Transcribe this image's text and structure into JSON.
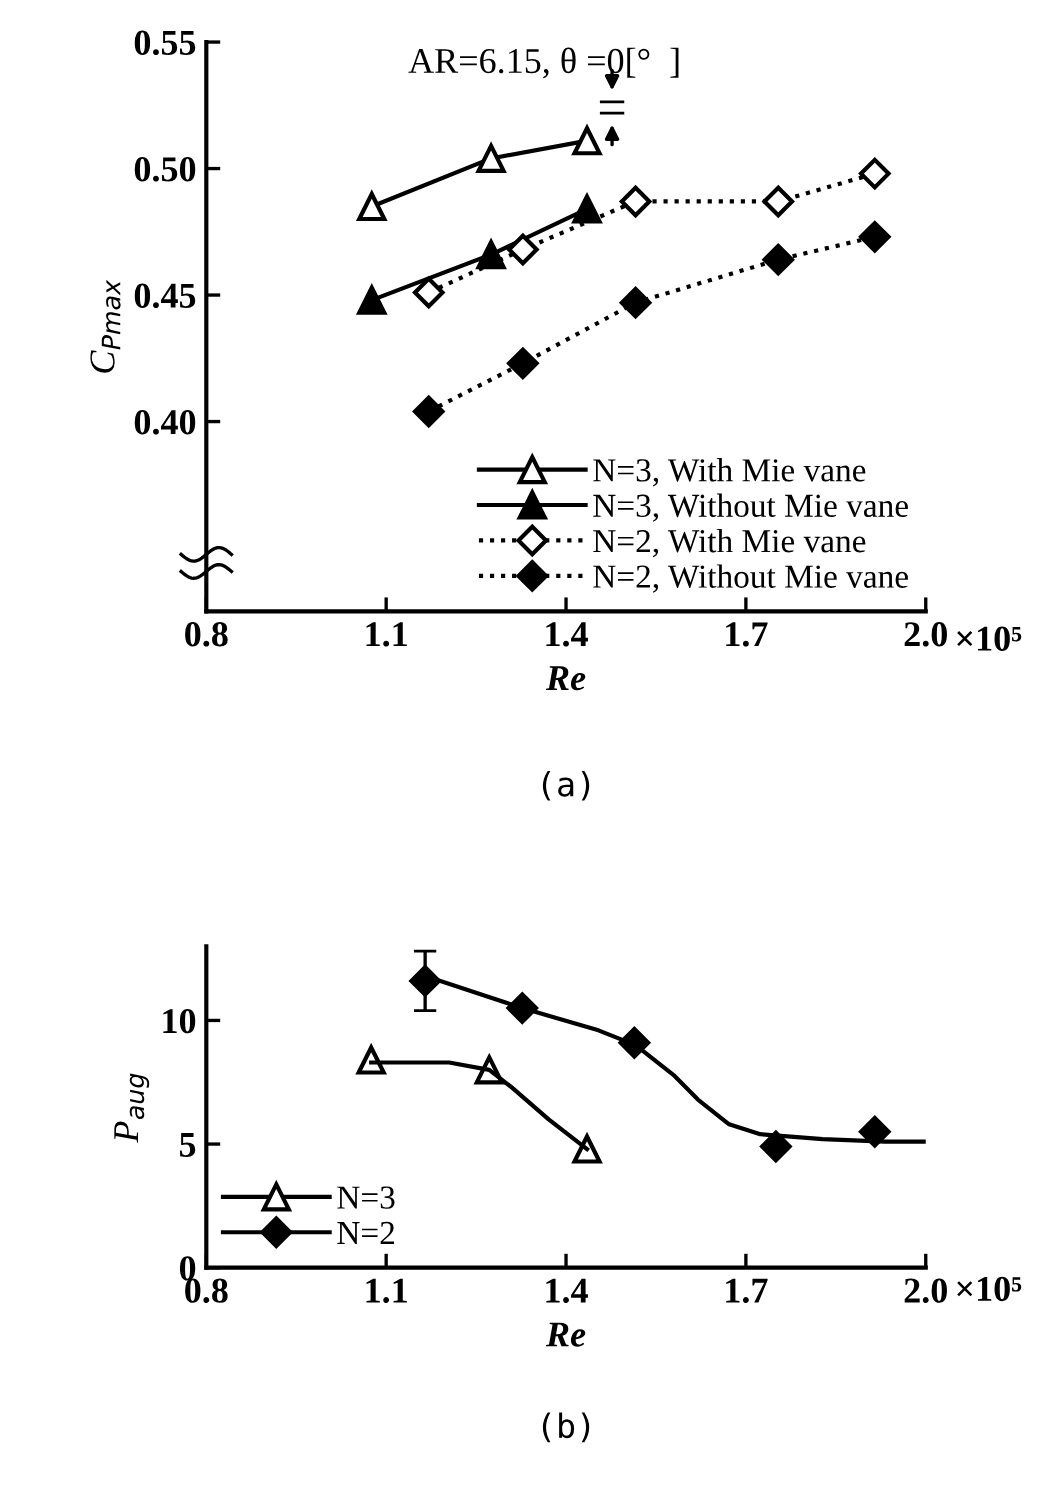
{
  "chart_data": [
    {
      "type": "line",
      "xlabel": "Re",
      "ylabel": "C$_{Pmax}$",
      "xlim": [
        0.8,
        2.0
      ],
      "ylim": [
        0.325,
        0.55
      ],
      "xticks": [
        0.8,
        1.1,
        1.4,
        1.7,
        {
          "value": 2.0,
          "label": "2.0"
        }
      ],
      "yticks": [
        {
          "value": 0.4,
          "label": "0.40"
        },
        0.45,
        {
          "value": 0.5,
          "label": "0.50"
        },
        0.55
      ],
      "grid": false,
      "legend": "bottom right",
      "annotations": [
        "AR=6.15, θ =0[°  ]",
        "(a)",
        "×10⁵"
      ],
      "series": [
        {
          "name": "N=3, With Mie vane",
          "color": "#000000",
          "x": [
            1.076,
            1.275,
            1.435
          ],
          "values": [
            0.485,
            0.504,
            0.511
          ],
          "marker": "triangle",
          "line_style": "solid"
        },
        {
          "name": "N=3, Without Mie vane",
          "color": "#000000",
          "x": [
            1.076,
            1.275,
            1.435
          ],
          "values": [
            0.448,
            0.466,
            0.484
          ],
          "marker": "triangle",
          "line_style": "solid"
        },
        {
          "name": "N=2, With Mie vane",
          "color": "#000000",
          "x": [
            1.171,
            1.328,
            1.516,
            1.754,
            1.915
          ],
          "values": [
            0.451,
            0.468,
            0.487,
            0.487,
            0.498
          ],
          "marker": "diamond",
          "line_style": "dotted"
        },
        {
          "name": "N=2, Without Mie vane",
          "color": "#000000",
          "x": [
            1.171,
            1.328,
            1.516,
            1.754,
            1.915
          ],
          "values": [
            0.404,
            0.423,
            0.447,
            0.464,
            0.473
          ],
          "marker": "diamond",
          "line_style": "dotted"
        }
      ]
    },
    {
      "type": "scatter",
      "xlabel": "Re",
      "ylabel": "P$_{aug}$",
      "xlim": [
        0.8,
        2.0
      ],
      "ylim": [
        0,
        13
      ],
      "xticks": [
        0.8,
        1.1,
        1.4,
        1.7,
        {
          "value": 2.0,
          "label": "2.0"
        }
      ],
      "yticks": [
        0,
        5,
        10
      ],
      "grid": false,
      "legend": "bottom left",
      "annotations": [
        "(b)",
        "×10⁵"
      ],
      "series": [
        {
          "name": "N=3",
          "color": "#000000",
          "x": [
            1.075,
            1.272,
            1.435
          ],
          "values": [
            8.4,
            8.0,
            4.8
          ],
          "marker": "triangle"
        },
        {
          "name": "N=2",
          "color": "#000000",
          "x": [
            1.165,
            1.327,
            1.514,
            1.75,
            1.915
          ],
          "values": [
            11.6,
            10.5,
            9.1,
            4.9,
            5.5
          ],
          "marker": "diamond",
          "errors": [
            1.2,
            null,
            null,
            null,
            null
          ]
        },
        {
          "type": "line",
          "color": "#000000",
          "marker": "none",
          "x": [
            1.075,
            1.205,
            1.272,
            1.309,
            1.371,
            1.435
          ],
          "values": [
            8.3,
            8.3,
            8.0,
            7.3,
            6.0,
            4.8
          ]
        },
        {
          "type": "line",
          "color": "#000000",
          "marker": "none",
          "x": [
            1.165,
            1.327,
            1.454,
            1.516,
            1.579,
            1.62,
            1.672,
            1.724,
            1.828,
            1.932,
            2.0
          ],
          "values": [
            11.8,
            10.5,
            9.6,
            9.0,
            7.8,
            6.8,
            5.8,
            5.4,
            5.2,
            5.1,
            5.1
          ]
        }
      ]
    }
  ]
}
